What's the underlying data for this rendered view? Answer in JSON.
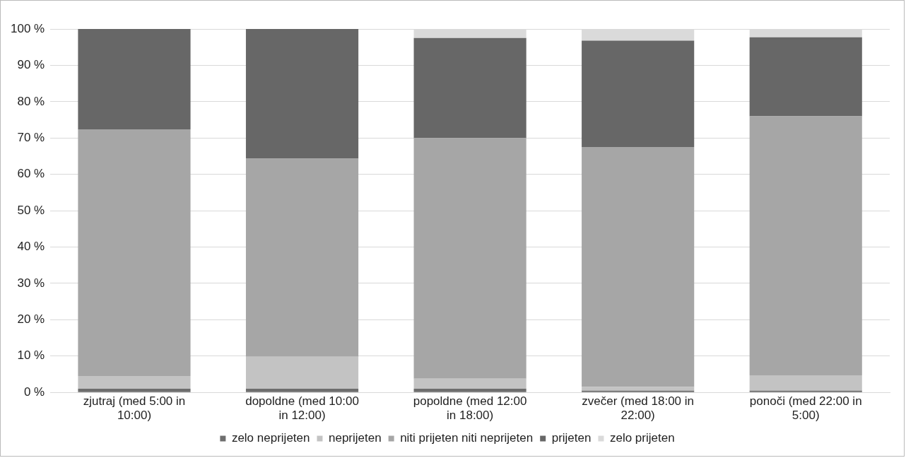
{
  "chart_data": {
    "type": "bar",
    "stacked": true,
    "categories": [
      "zjutraj (med 5:00 in 10:00)",
      "dopoldne (med 10:00 in 12:00)",
      "popoldne (med 12:00 in 18:00)",
      "zvečer (med 18:00 in 22:00)",
      "ponoči (med 22:00 in 5:00)"
    ],
    "series": [
      {
        "name": "zelo neprijeten",
        "color": "#6e6e6e",
        "values": [
          1,
          1,
          1,
          0.5,
          0.5
        ]
      },
      {
        "name": "neprijeten",
        "color": "#c3c3c3",
        "values": [
          3.5,
          8.8,
          2.8,
          1,
          4.2
        ]
      },
      {
        "name": "niti prijeten niti neprijeten",
        "color": "#a6a6a6",
        "values": [
          67.9,
          54.5,
          66.2,
          66,
          71.3
        ]
      },
      {
        "name": "prijeten",
        "color": "#676767",
        "values": [
          27.6,
          35.7,
          27.5,
          29.3,
          21.7
        ]
      },
      {
        "name": "zelo prijeten",
        "color": "#dadada",
        "values": [
          0,
          0,
          2.5,
          3.2,
          2.3
        ]
      }
    ],
    "ylim": [
      0,
      100
    ],
    "yticks": [
      {
        "value": 0,
        "label": "0 %"
      },
      {
        "value": 10,
        "label": "10 %"
      },
      {
        "value": 20,
        "label": "20 %"
      },
      {
        "value": 30,
        "label": "30 %"
      },
      {
        "value": 40,
        "label": "40 %"
      },
      {
        "value": 50,
        "label": "50 %"
      },
      {
        "value": 60,
        "label": "60 %"
      },
      {
        "value": 70,
        "label": "70 %"
      },
      {
        "value": 80,
        "label": "80 %"
      },
      {
        "value": 90,
        "label": "90 %"
      },
      {
        "value": 100,
        "label": "100 %"
      }
    ],
    "grid": "y",
    "legend": "bottom"
  }
}
